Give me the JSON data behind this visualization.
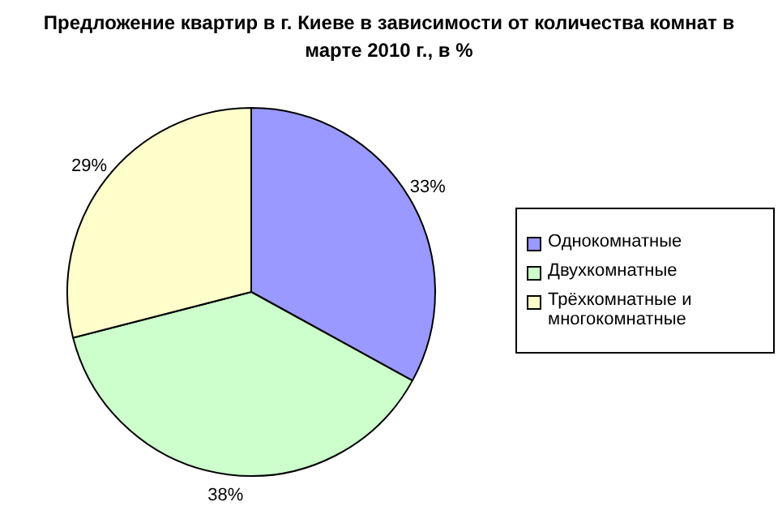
{
  "chart_data": {
    "type": "pie",
    "title": "Предложение квартир в г. Киеве в зависимости от количества комнат в марте 2010 г., в %",
    "categories": [
      "Однокомнатные",
      "Двухкомнатные",
      "Трёхкомнатные и многокомнатные"
    ],
    "values": [
      33,
      38,
      29
    ],
    "colors": [
      "#9999ff",
      "#ccffcc",
      "#ffffcc"
    ],
    "value_labels": [
      "33%",
      "38%",
      "29%"
    ],
    "legend": "right"
  }
}
